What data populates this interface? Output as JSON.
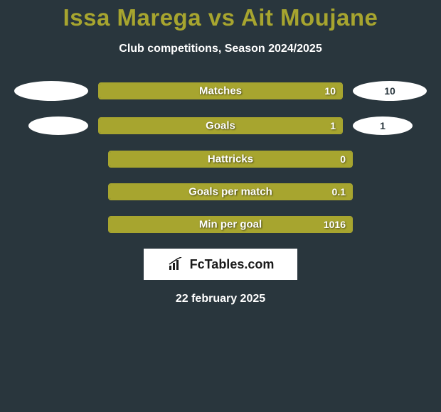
{
  "title": "Issa Marega vs Ait Moujane",
  "subtitle": "Club competitions, Season 2024/2025",
  "colors": {
    "background": "#29363d",
    "accent": "#a7a52f",
    "text": "#ffffff",
    "pill": "#ffffff"
  },
  "rows": [
    {
      "label": "Matches",
      "left": {
        "value": "",
        "pill": true,
        "pill_size": "large",
        "fill_pct": 0
      },
      "right": {
        "value": "10",
        "pill": true,
        "pill_size": "large",
        "fill_pct": 100
      }
    },
    {
      "label": "Goals",
      "left": {
        "value": "",
        "pill": true,
        "pill_size": "small",
        "fill_pct": 0
      },
      "right": {
        "value": "1",
        "pill": true,
        "pill_size": "small",
        "fill_pct": 100
      }
    },
    {
      "label": "Hattricks",
      "left": {
        "value": "",
        "pill": false,
        "fill_pct": 0
      },
      "right": {
        "value": "0",
        "pill": false,
        "fill_pct": 100
      }
    },
    {
      "label": "Goals per match",
      "left": {
        "value": "",
        "pill": false,
        "fill_pct": 0
      },
      "right": {
        "value": "0.1",
        "pill": false,
        "fill_pct": 100
      }
    },
    {
      "label": "Min per goal",
      "left": {
        "value": "",
        "pill": false,
        "fill_pct": 0
      },
      "right": {
        "value": "1016",
        "pill": false,
        "fill_pct": 100
      }
    }
  ],
  "logo": {
    "text": "FcTables.com"
  },
  "date": "22 february 2025"
}
